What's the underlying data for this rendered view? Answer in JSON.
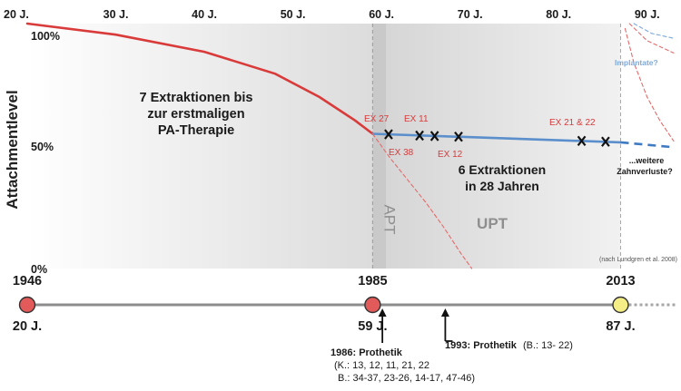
{
  "chart_data": {
    "type": "line",
    "xlabel": "",
    "ylabel": "Attachmentlevel",
    "xlim": [
      20,
      93
    ],
    "ylim": [
      0,
      100
    ],
    "x_ticks": [
      {
        "value": 20,
        "label": "20 J."
      },
      {
        "value": 30,
        "label": "30 J."
      },
      {
        "value": 40,
        "label": "40 J."
      },
      {
        "value": 50,
        "label": "50 J."
      },
      {
        "value": 60,
        "label": "60 J."
      },
      {
        "value": 70,
        "label": "70 J."
      },
      {
        "value": 80,
        "label": "80 J."
      },
      {
        "value": 90,
        "label": "90 J."
      }
    ],
    "y_ticks": [
      {
        "value": 100,
        "label": "100%"
      },
      {
        "value": 50,
        "label": "50%"
      },
      {
        "value": 0,
        "label": "0%"
      }
    ],
    "phases": [
      {
        "label": "APT",
        "from": 59,
        "to": 60.5
      },
      {
        "label": "UPT",
        "from": 60.5,
        "to": 87
      }
    ],
    "series": [
      {
        "style": "solid",
        "color": "#d93a3a",
        "points": [
          [
            20,
            100
          ],
          [
            30,
            95.5
          ],
          [
            40,
            88.5
          ],
          [
            48,
            79.5
          ],
          [
            53,
            70
          ],
          [
            57,
            60.5
          ],
          [
            59,
            55
          ]
        ]
      },
      {
        "style": "solid",
        "color": "#5b8fcc",
        "points": [
          [
            59,
            55
          ],
          [
            87,
            51.5
          ]
        ]
      },
      {
        "style": "dashed",
        "color": "#3f7ac2",
        "points": [
          [
            87,
            51.5
          ],
          [
            93,
            49.5
          ]
        ]
      },
      {
        "style": "dashed-thin",
        "color": "#e26c6c",
        "points": [
          [
            59,
            55
          ],
          [
            61,
            45
          ],
          [
            63,
            36
          ],
          [
            65,
            27
          ],
          [
            67,
            17
          ],
          [
            69,
            6
          ],
          [
            70.2,
            0
          ]
        ]
      },
      {
        "style": "dashed-thin",
        "color": "#e26c6c",
        "points": [
          [
            87.5,
            98
          ],
          [
            88.5,
            84
          ],
          [
            90,
            70
          ],
          [
            91.5,
            60
          ],
          [
            93,
            52
          ]
        ]
      },
      {
        "style": "dashed-thin",
        "color": "#e26c6c",
        "points": [
          [
            88,
            100
          ],
          [
            90,
            93
          ],
          [
            93,
            88
          ]
        ]
      },
      {
        "style": "dashed-thin",
        "color": "#7fa8da",
        "points": [
          [
            88.5,
            100
          ],
          [
            90.5,
            96
          ],
          [
            93,
            94
          ]
        ]
      }
    ],
    "extractions": [
      {
        "x": 60.8,
        "y": 54.8
      },
      {
        "x": 64.3,
        "y": 54.3
      },
      {
        "x": 66.0,
        "y": 54.1
      },
      {
        "x": 68.7,
        "y": 53.8
      },
      {
        "x": 82.6,
        "y": 52.1
      },
      {
        "x": 85.3,
        "y": 51.8
      }
    ],
    "annotations": {
      "ex27": "EX 27",
      "ex11": "EX 11",
      "ex38": "EX 38",
      "ex12": "EX 12",
      "ex2122": "EX 21 & 22",
      "pre_line1": "7 Extraktionen bis",
      "pre_line2": "zur erstmaligen",
      "pre_line3": "PA-Therapie",
      "post_line1": "6 Extraktionen",
      "post_line2": "in 28 Jahren",
      "implants": "Implantate?",
      "future_line1": "...weitere",
      "future_line2": "Zahnverluste?",
      "source": "(nach Lundgren et al. 2008)"
    },
    "timeline": {
      "events": [
        {
          "year": "1946",
          "age": 20,
          "age_label": "20 J.",
          "color": "#e25a5a"
        },
        {
          "year": "1985",
          "age": 59,
          "age_label": "59 J.",
          "color": "#e25a5a"
        },
        {
          "year": "2013",
          "age": 87,
          "age_label": "87 J.",
          "color": "#f5ee86"
        }
      ],
      "notes": [
        {
          "age": 60,
          "title": "1986: Prothetik",
          "line2": "(K.: 13, 12, 11, 21, 22",
          "line3": "B.: 34-37, 23-26, 14-17, 47-46)"
        },
        {
          "age": 67,
          "title": "1993: Prothetik",
          "detail": "(B.: 13- 22)"
        }
      ]
    }
  }
}
